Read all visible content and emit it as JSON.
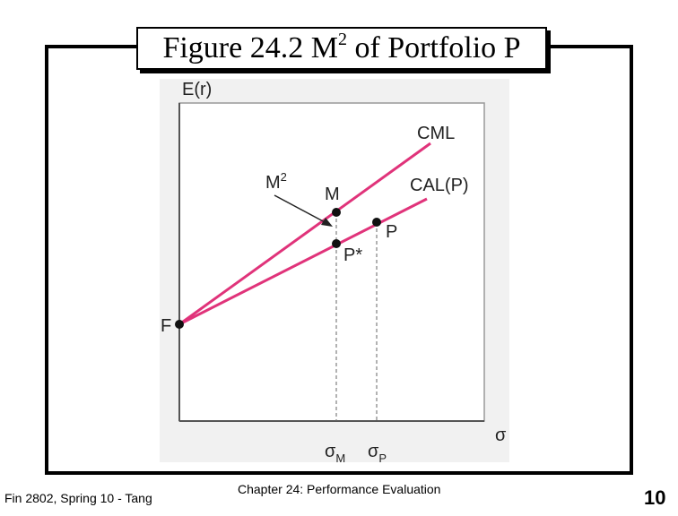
{
  "title": {
    "main": "Figure 24.2 M",
    "sup": "2",
    "rest": " of Portfolio P"
  },
  "diagram": {
    "y_axis": "E(r)",
    "x_axis": "σ",
    "labels": {
      "cml": "CML",
      "cal": "CAL(P)",
      "m": "M",
      "p": "P",
      "p_star": "P*",
      "f": "F",
      "m2": {
        "base": "M",
        "sup": "2"
      },
      "sigma_m": {
        "base": "σ",
        "sub": "M"
      },
      "sigma_p": {
        "base": "σ",
        "sub": "P"
      }
    }
  },
  "footer": {
    "left": "Fin 2802, Spring 10 - Tang",
    "center": "Chapter 24: Performance Evaluation",
    "page": "10"
  }
}
